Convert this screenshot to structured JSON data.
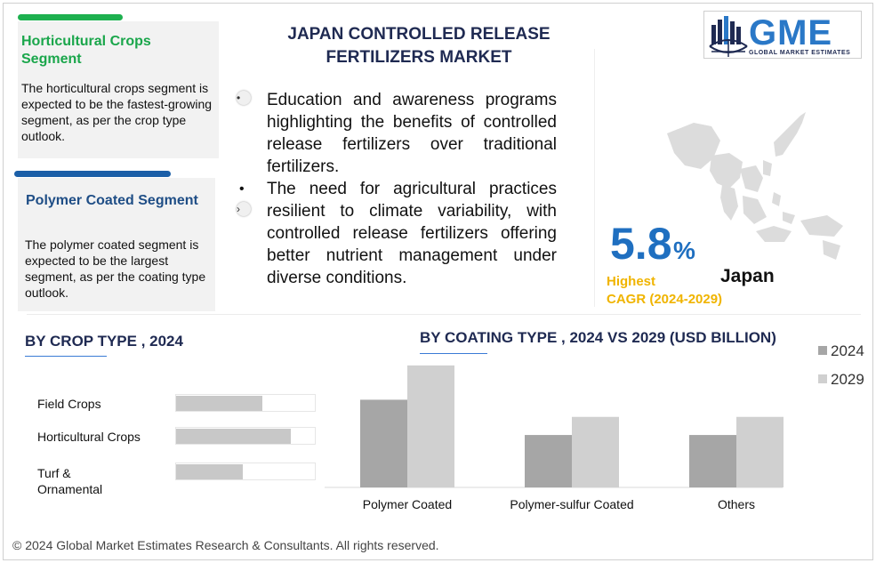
{
  "title": "JAPAN CONTROLLED RELEASE FERTILIZERS MARKET",
  "cards": [
    {
      "heading": "Horticultural Crops Segment",
      "text": "The horticultural crops segment is expected to be the fastest-growing segment, as per the crop type outlook.",
      "accent": "#1db04f"
    },
    {
      "heading": "Polymer Coated Segment",
      "text": "The polymer coated segment is expected to be the largest segment, as per the coating type outlook.",
      "accent": "#1b5fa8"
    }
  ],
  "bullets": [
    "Education and awareness programs highlighting the benefits of controlled release fertilizers over traditional fertilizers.",
    "The need for agricultural practices resilient to climate variability, with controlled release fertilizers offering better nutrient management under diverse conditions."
  ],
  "logo": {
    "text": "GME",
    "subtitle": "GLOBAL MARKET ESTIMATES"
  },
  "stats": {
    "cagr_value": "5.8",
    "cagr_unit": "%",
    "country": "Japan",
    "highest": "Highest",
    "cagr_label": "CAGR (2024-2029)"
  },
  "footer": "© 2024 Global Market Estimates Research & Consultants. All rights reserved.",
  "chart_data": [
    {
      "type": "bar",
      "orientation": "horizontal",
      "title": "BY CROP TYPE , 2024",
      "categories": [
        "Field Crops",
        "Horticultural Crops",
        "Turf & Ornamental"
      ],
      "values": [
        62,
        83,
        48
      ],
      "xlim": [
        0,
        100
      ],
      "grid": false,
      "legend": "none"
    },
    {
      "type": "bar",
      "title": "BY COATING TYPE , 2024 VS 2029 (USD BILLION)",
      "categories": [
        "Polymer Coated",
        "Polymer-sulfur Coated",
        "Others"
      ],
      "series": [
        {
          "name": "2024",
          "values": [
            92,
            55,
            55
          ],
          "color": "#a6a6a6"
        },
        {
          "name": "2029",
          "values": [
            128,
            74,
            74
          ],
          "color": "#d0d0d0"
        }
      ],
      "ylim": [
        0,
        140
      ],
      "grid": false,
      "legend": "right"
    }
  ]
}
